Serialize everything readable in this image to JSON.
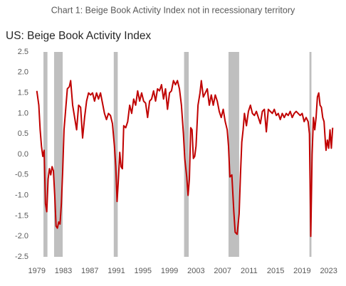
{
  "chart_data": {
    "type": "line",
    "title": "Chart 1: Beige Book Activity Index not in recessionary territory",
    "subtitle": "US: Beige Book Activity Index",
    "xlim": [
      1978.6,
      2024
    ],
    "xticks": [
      1979,
      1983,
      1987,
      1991,
      1995,
      1999,
      2003,
      2007,
      2011,
      2015,
      2019,
      2023
    ],
    "ylim": [
      -2.5,
      2.5
    ],
    "yticks": [
      {
        "value": -2.5,
        "label": "-2.5"
      },
      {
        "value": -2,
        "label": "-2.0"
      },
      {
        "value": -1.5,
        "label": "-1.5"
      },
      {
        "value": -1,
        "label": "-1.0"
      },
      {
        "value": -0.5,
        "label": "-0.5"
      },
      {
        "value": 0,
        "label": "0.0"
      },
      {
        "value": 0.5,
        "label": "0.5"
      },
      {
        "value": 1,
        "label": "1.0"
      },
      {
        "value": 1.5,
        "label": "1.5"
      },
      {
        "value": 2,
        "label": "2.0"
      },
      {
        "value": 2.5,
        "label": "2.5"
      }
    ],
    "shaded_periods": [
      [
        1980.0,
        1980.6
      ],
      [
        1981.6,
        1982.9
      ],
      [
        1990.6,
        1991.2
      ],
      [
        2001.2,
        2001.9
      ],
      [
        2007.9,
        2009.5
      ],
      [
        2020.1,
        2020.4
      ]
    ],
    "shade_color": "#bfbfbf",
    "series": [
      {
        "color": "#c00000",
        "x": [
          1979.0,
          1979.3,
          1979.5,
          1979.7,
          1979.9,
          1980.1,
          1980.3,
          1980.5,
          1980.7,
          1980.9,
          1981.1,
          1981.3,
          1981.5,
          1981.7,
          1981.9,
          1982.1,
          1982.3,
          1982.5,
          1982.7,
          1982.9,
          1983.1,
          1983.3,
          1983.6,
          1983.9,
          1984.1,
          1984.4,
          1984.7,
          1985.0,
          1985.3,
          1985.6,
          1985.9,
          1986.2,
          1986.5,
          1986.8,
          1987.1,
          1987.4,
          1987.7,
          1988.0,
          1988.3,
          1988.6,
          1988.9,
          1989.2,
          1989.5,
          1989.8,
          1990.1,
          1990.4,
          1990.7,
          1990.9,
          1991.1,
          1991.3,
          1991.5,
          1991.7,
          1991.9,
          1992.1,
          1992.4,
          1992.7,
          1993.0,
          1993.3,
          1993.6,
          1993.9,
          1994.2,
          1994.5,
          1994.8,
          1995.1,
          1995.4,
          1995.7,
          1996.0,
          1996.3,
          1996.6,
          1996.9,
          1997.2,
          1997.5,
          1997.8,
          1998.1,
          1998.4,
          1998.7,
          1999.0,
          1999.3,
          1999.6,
          1999.9,
          2000.2,
          2000.5,
          2000.8,
          2001.1,
          2001.3,
          2001.6,
          2001.8,
          2002.0,
          2002.2,
          2002.4,
          2002.6,
          2002.8,
          2003.0,
          2003.3,
          2003.6,
          2003.8,
          2004.1,
          2004.4,
          2004.7,
          2005.0,
          2005.3,
          2005.6,
          2005.9,
          2006.2,
          2006.5,
          2006.8,
          2007.1,
          2007.4,
          2007.7,
          2007.9,
          2008.1,
          2008.4,
          2008.7,
          2008.9,
          2009.2,
          2009.5,
          2009.7,
          2009.9,
          2010.1,
          2010.3,
          2010.6,
          2010.9,
          2011.2,
          2011.5,
          2011.8,
          2012.1,
          2012.4,
          2012.7,
          2013.0,
          2013.3,
          2013.6,
          2013.9,
          2014.2,
          2014.5,
          2014.8,
          2015.1,
          2015.4,
          2015.7,
          2016.0,
          2016.3,
          2016.6,
          2016.9,
          2017.2,
          2017.5,
          2017.8,
          2018.1,
          2018.4,
          2018.7,
          2019.0,
          2019.3,
          2019.6,
          2019.9,
          2020.1,
          2020.3,
          2020.5,
          2020.7,
          2020.9,
          2021.1,
          2021.3,
          2021.5,
          2021.7,
          2021.9,
          2022.1,
          2022.3,
          2022.5,
          2022.6,
          2022.8,
          2023.0,
          2023.2,
          2023.4,
          2023.6
        ],
        "values": [
          1.55,
          1.2,
          0.6,
          0.2,
          -0.05,
          0.1,
          -1.2,
          -1.4,
          -0.6,
          -0.35,
          -0.5,
          -0.3,
          -0.4,
          -1.0,
          -1.75,
          -1.8,
          -1.65,
          -1.7,
          -1.2,
          -0.4,
          0.6,
          1.0,
          1.6,
          1.65,
          1.8,
          1.2,
          0.9,
          0.6,
          1.2,
          1.15,
          0.4,
          0.9,
          1.3,
          1.5,
          1.45,
          1.5,
          1.3,
          1.5,
          1.35,
          1.5,
          1.25,
          1.0,
          0.85,
          1.0,
          0.95,
          0.75,
          0.2,
          -0.3,
          -1.15,
          -0.6,
          0.05,
          -0.3,
          -0.35,
          0.7,
          0.65,
          0.8,
          1.2,
          1.0,
          1.35,
          1.2,
          1.55,
          1.3,
          1.5,
          1.3,
          1.25,
          0.9,
          1.3,
          1.35,
          1.55,
          1.3,
          1.6,
          1.55,
          1.7,
          1.35,
          1.6,
          1.1,
          1.5,
          1.55,
          1.8,
          1.7,
          1.8,
          1.6,
          1.2,
          0.5,
          -0.1,
          -0.55,
          -1.0,
          -0.6,
          0.65,
          0.6,
          -0.1,
          -0.05,
          0.2,
          1.2,
          1.5,
          1.8,
          1.4,
          1.5,
          1.6,
          1.2,
          1.45,
          1.2,
          1.45,
          1.3,
          1.05,
          0.9,
          1.1,
          0.8,
          0.6,
          0.2,
          -0.55,
          -0.5,
          -1.4,
          -1.9,
          -1.95,
          -1.45,
          -0.5,
          0.3,
          0.6,
          1.0,
          0.7,
          1.05,
          1.2,
          1.0,
          0.95,
          1.05,
          0.9,
          0.75,
          1.05,
          1.1,
          0.55,
          1.1,
          1.05,
          1.0,
          1.1,
          0.95,
          1.0,
          0.85,
          1.0,
          0.9,
          1.0,
          0.95,
          1.05,
          0.9,
          1.0,
          1.05,
          1.0,
          0.95,
          1.0,
          0.8,
          0.9,
          0.8,
          0.5,
          -2.0,
          0.0,
          0.9,
          0.6,
          0.9,
          1.4,
          1.5,
          1.2,
          1.15,
          0.9,
          0.8,
          0.3,
          0.1,
          0.35,
          0.15,
          0.6,
          0.15,
          0.65
        ]
      }
    ]
  }
}
